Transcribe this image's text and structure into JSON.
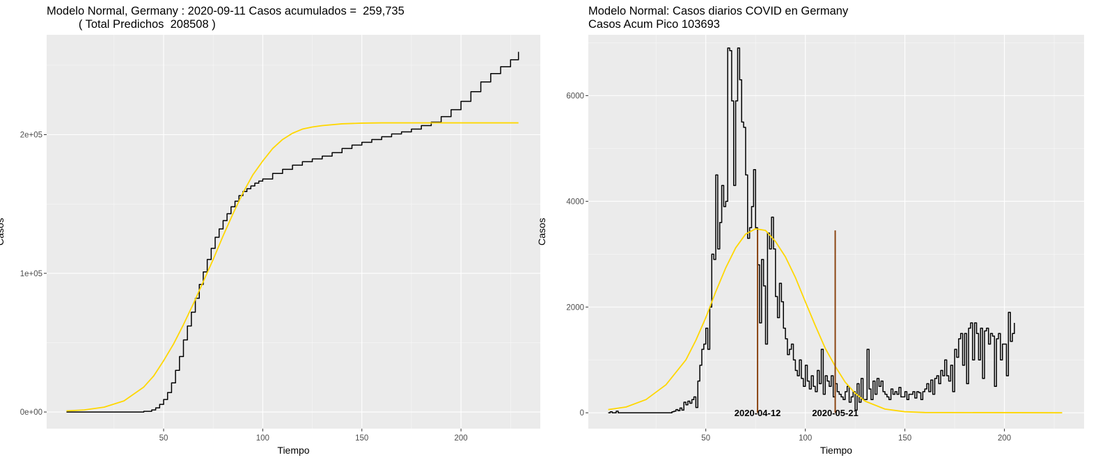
{
  "chart_data": [
    {
      "type": "line",
      "title": "Modelo Normal, Germany : 2020-09-11 Casos acumulados =  259,735",
      "subtitle": "          ( Total Predichos  208508 )",
      "xlabel": "Tiempo",
      "ylabel": "Casos",
      "xlim": [
        -9,
        240
      ],
      "ylim": [
        -12000,
        272000
      ],
      "x_ticks": [
        50,
        100,
        150,
        200
      ],
      "x_tick_labels": [
        "50",
        "100",
        "150",
        "200"
      ],
      "y_ticks": [
        0,
        100000,
        200000
      ],
      "y_tick_labels": [
        "0e+00",
        "1e+05",
        "2e+05"
      ],
      "grid": true,
      "legend": "none",
      "series": [
        {
          "style": "step",
          "color": "#000000",
          "x": [
            1,
            40,
            44,
            46,
            48,
            50,
            52,
            54,
            56,
            58,
            60,
            62,
            64,
            66,
            68,
            70,
            72,
            74,
            76,
            78,
            80,
            82,
            84,
            86,
            88,
            90,
            92,
            94,
            96,
            98,
            100,
            105,
            110,
            115,
            120,
            125,
            130,
            135,
            140,
            145,
            150,
            155,
            160,
            165,
            170,
            175,
            180,
            185,
            190,
            195,
            200,
            205,
            210,
            215,
            220,
            225,
            229
          ],
          "y": [
            0,
            500,
            1500,
            3000,
            5500,
            9000,
            14000,
            21000,
            30000,
            40000,
            52000,
            62000,
            72000,
            82000,
            92000,
            101000,
            110000,
            118000,
            126000,
            132000,
            138000,
            143000,
            148000,
            152000,
            156000,
            159000,
            161000,
            163000,
            165000,
            166500,
            168000,
            172000,
            175000,
            178000,
            180500,
            182500,
            184500,
            187000,
            190000,
            192500,
            194500,
            196500,
            198500,
            200500,
            202000,
            204000,
            206500,
            209000,
            213000,
            218000,
            224000,
            231000,
            238000,
            244000,
            249000,
            254000,
            259735
          ]
        },
        {
          "style": "line",
          "color": "#FFD700",
          "x": [
            1,
            10,
            20,
            30,
            40,
            45,
            50,
            55,
            60,
            65,
            70,
            75,
            80,
            85,
            90,
            95,
            100,
            105,
            110,
            115,
            120,
            125,
            130,
            140,
            150,
            160,
            229
          ],
          "y": [
            800,
            1500,
            3500,
            8000,
            18000,
            26000,
            37000,
            49000,
            63000,
            78000,
            94000,
            110000,
            127000,
            143000,
            158000,
            171000,
            181000,
            190000,
            196500,
            201000,
            204000,
            205500,
            206500,
            207800,
            208300,
            208500,
            208508
          ]
        }
      ]
    },
    {
      "type": "line",
      "title": "Modelo Normal: Casos diarios COVID en Germany",
      "subtitle": "Casos Acum Pico 103693",
      "xlabel": "Tiempo",
      "ylabel": "Casos",
      "xlim": [
        -9,
        240
      ],
      "ylim": [
        -300,
        7150
      ],
      "x_ticks": [
        50,
        100,
        150,
        200
      ],
      "x_tick_labels": [
        "50",
        "100",
        "150",
        "200"
      ],
      "y_ticks": [
        0,
        2000,
        4000,
        6000
      ],
      "y_tick_labels": [
        "0",
        "2000",
        "4000",
        "6000"
      ],
      "grid": true,
      "legend": "none",
      "series": [
        {
          "style": "step",
          "color": "#000000",
          "y": [
            0,
            20,
            0,
            0,
            30,
            0,
            0,
            0,
            0,
            0,
            0,
            0,
            0,
            0,
            0,
            0,
            0,
            0,
            0,
            0,
            0,
            0,
            0,
            0,
            0,
            0,
            0,
            0,
            0,
            0,
            0,
            0,
            20,
            30,
            60,
            40,
            90,
            50,
            200,
            150,
            220,
            180,
            250,
            300,
            100,
            600,
            900,
            1200,
            1300,
            1600,
            1200,
            2000,
            3000,
            2900,
            4500,
            3100,
            3600,
            4300,
            3900,
            4000,
            6900,
            6850,
            5900,
            4300,
            5900,
            6900,
            6300,
            5500,
            5400,
            4500,
            3300,
            3500,
            3900,
            4600,
            3500,
            2800,
            1700,
            2900,
            2400,
            1300,
            3400,
            3100,
            3700,
            3100,
            2200,
            1800,
            2450,
            2100,
            1600,
            1400,
            1100,
            1200,
            1300,
            1000,
            800,
            700,
            1000,
            650,
            500,
            900,
            600,
            450,
            700,
            500,
            400,
            800,
            550,
            1200,
            350,
            700,
            600,
            500,
            700,
            300,
            550,
            400,
            350,
            300,
            250,
            400,
            500,
            200,
            300,
            400,
            50,
            550,
            200,
            650,
            250,
            250,
            1200,
            450,
            250,
            600,
            350,
            650,
            500,
            600,
            400,
            350,
            300,
            250,
            450,
            350,
            400,
            350,
            480,
            300,
            300,
            400,
            250,
            350,
            350,
            400,
            280,
            400,
            380,
            250,
            400,
            450,
            550,
            400,
            620,
            350,
            650,
            700,
            550,
            800,
            700,
            1000,
            700,
            600,
            900,
            400,
            1200,
            1050,
            1400,
            1500,
            900,
            1500,
            550,
            1600,
            1700,
            1000,
            1700,
            1500,
            1000,
            1600,
            650,
            1550,
            1600,
            1300,
            1500,
            1450,
            500,
            1400,
            1500,
            1000,
            1300,
            1300,
            700,
            1900,
            1350,
            1500,
            1700
          ]
        },
        {
          "style": "line",
          "color": "#FFD700",
          "x": [
            1,
            10,
            20,
            30,
            40,
            45,
            50,
            55,
            60,
            65,
            70,
            75,
            80,
            85,
            90,
            95,
            100,
            105,
            110,
            115,
            120,
            125,
            130,
            140,
            150,
            160,
            229
          ],
          "y": [
            60,
            110,
            250,
            530,
            1000,
            1370,
            1800,
            2290,
            2740,
            3120,
            3380,
            3480,
            3450,
            3240,
            2950,
            2560,
            2100,
            1650,
            1220,
            880,
            580,
            370,
            220,
            70,
            20,
            5,
            0
          ]
        }
      ],
      "markers": [
        {
          "x": 76,
          "label": "2020-04-12",
          "color": "#8B4513"
        },
        {
          "x": 115,
          "label": "2020-05-21",
          "color": "#8B4513"
        }
      ]
    }
  ]
}
